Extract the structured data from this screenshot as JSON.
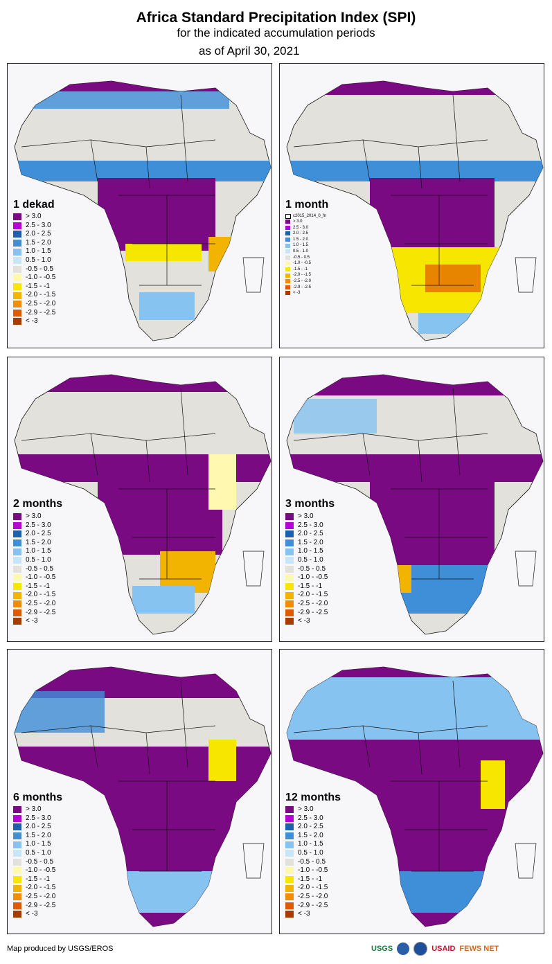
{
  "header": {
    "title": "Africa Standard Precipitation Index (SPI)",
    "subtitle": "for the indicated accumulation periods",
    "date": "as of April 30, 2021"
  },
  "legend_colors": [
    "#7a0a82",
    "#b500d6",
    "#1a5fb0",
    "#3f8fd8",
    "#86c3f0",
    "#c8e6f8",
    "#e3e1dc",
    "#fff8b0",
    "#f7e600",
    "#f2b400",
    "#f28c00",
    "#e05a00",
    "#a83c00"
  ],
  "legend_standard": [
    "> 3.0",
    "2.5 - 3.0",
    "2.0 - 2.5",
    "1.5 - 2.0",
    "1.0 - 1.5",
    "0.5 - 1.0",
    "-0.5 - 0.5",
    "-1.0 - -0.5",
    "-1.5 - -1",
    "-2.0 - -1.5",
    "-2.5 - -2.0",
    "-2.9 - -2.5",
    "< -3"
  ],
  "legend_standard_dots": [
    "> 3.0",
    "2.5 - 3.0",
    "2.0 - 2.5",
    "1.5 - 2.0",
    "1.0 - 1.5",
    "0.5 - 1.0",
    "-0.5 - 0.5",
    "-1.0 - -0.5",
    "-1.5 - -1",
    "-2.0 - -1.5",
    "-2.5 - -2.0",
    "-2.9 - -2.5",
    "< -3"
  ],
  "legend_small": [
    "> 3.0",
    "2.5 - 3.0",
    "2.0 - 2.5",
    "1.5 - 2.0",
    "1.0 - 1.5",
    "0.5 - 1.0",
    "-0.5 - 0.5",
    "-1.0 - -0.5",
    "-1.5 - -1",
    "-2.0 - -1.5",
    "-2.5 - -2.0",
    "-2.9 - -2.5",
    "< -3"
  ],
  "legend_small_note": "c2015_2014_0_fn",
  "panels": {
    "p1": {
      "label": "1 dekad"
    },
    "p2": {
      "label": "1 month"
    },
    "p3": {
      "label": "2 months"
    },
    "p4": {
      "label": "3 months"
    },
    "p5": {
      "label": "6 months"
    },
    "p6": {
      "label": "12 months"
    }
  },
  "footer": {
    "credit": "Map produced by USGS/EROS",
    "logo_usgs": "USGS",
    "logo_usaid": "USAID",
    "logo_fews": "FEWS NET"
  }
}
